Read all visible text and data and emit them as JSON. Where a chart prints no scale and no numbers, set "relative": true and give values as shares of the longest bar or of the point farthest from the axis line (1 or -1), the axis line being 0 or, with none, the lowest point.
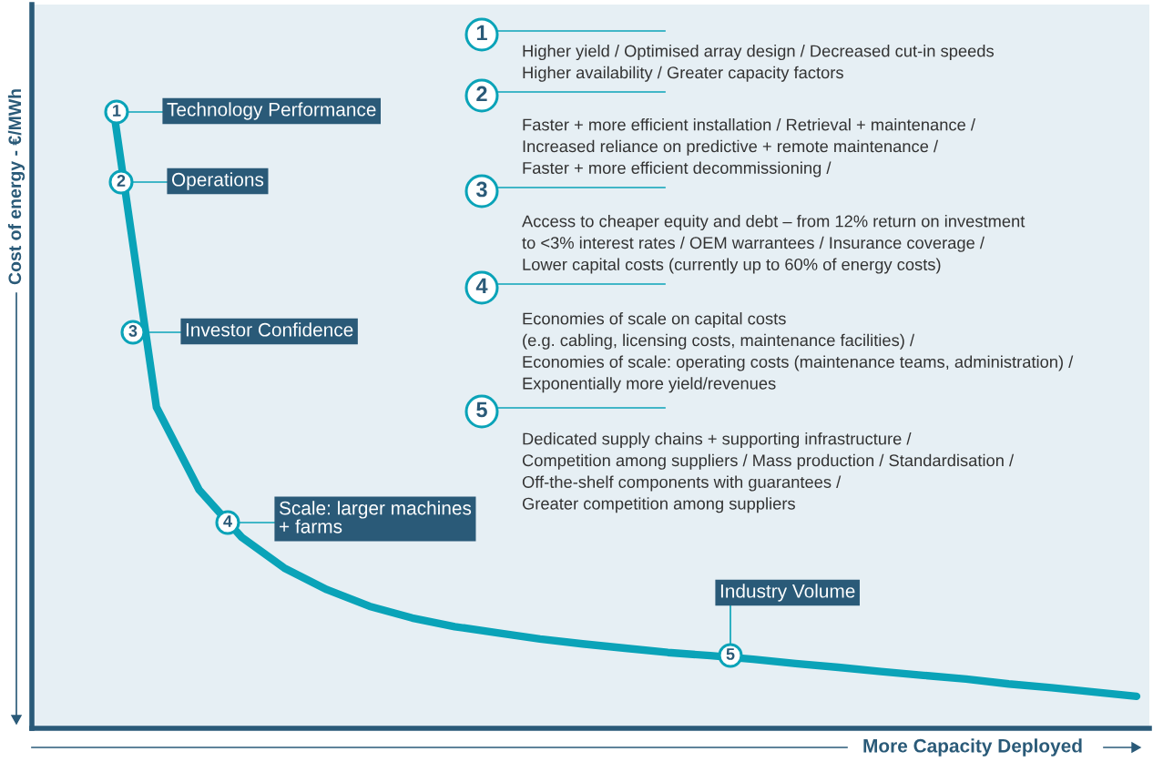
{
  "chart_data": {
    "type": "line",
    "relative": true,
    "xlabel": "More Capacity Deployed",
    "ylabel": "Cost of energy - €/MWh",
    "categories": [
      null,
      null,
      null,
      null,
      null,
      null,
      null,
      null,
      null,
      null,
      null,
      null,
      null,
      null,
      null,
      null,
      null,
      null,
      null,
      null,
      null,
      null,
      null,
      null,
      null
    ],
    "series": [
      {
        "color": "#0aa3b8",
        "values": [
          1.0,
          0.521,
          0.387,
          0.31,
          0.26,
          0.225,
          0.198,
          0.179,
          0.165,
          0.155,
          0.145,
          0.137,
          0.13,
          0.123,
          0.118,
          0.112,
          0.105,
          0.099,
          0.092,
          0.086,
          0.08,
          0.072,
          0.066,
          0.059,
          0.052
        ]
      }
    ],
    "grid": false,
    "marker": "none",
    "line_style": "solid",
    "annotations": [
      "1",
      "Technology Performance",
      "2",
      "Operations",
      "3",
      "Investor Confidence",
      "4",
      "Scale: larger machines\n+ farms",
      "5",
      "Industry Volume",
      "1",
      "Higher yield / Optimised array design / Decreased cut-in speeds\nHigher availability / Greater capacity factors",
      "2",
      "Faster + more efficient installation / Retrieval + maintenance /\nIncreased reliance on predictive + remote maintenance /\nFaster + more efficient decommissioning /",
      "3",
      "Access to cheaper equity and debt – from 12% return on investment\nto <3% interest rates / OEM warrantees / Insurance coverage /\nLower capital costs (currently up to 60% of energy costs)",
      "4",
      "Economies of scale on capital costs\n(e.g. cabling, licensing costs, maintenance facilities) /\nEconomies of scale: operating costs (maintenance teams, administration) /\nExponentially more yield/revenues",
      "5",
      "Dedicated supply chains + supporting infrastructure /\nCompetition among suppliers / Mass production / Standardisation /\nOff-the-shelf components with guarantees /\nGreater competition among suppliers"
    ]
  }
}
